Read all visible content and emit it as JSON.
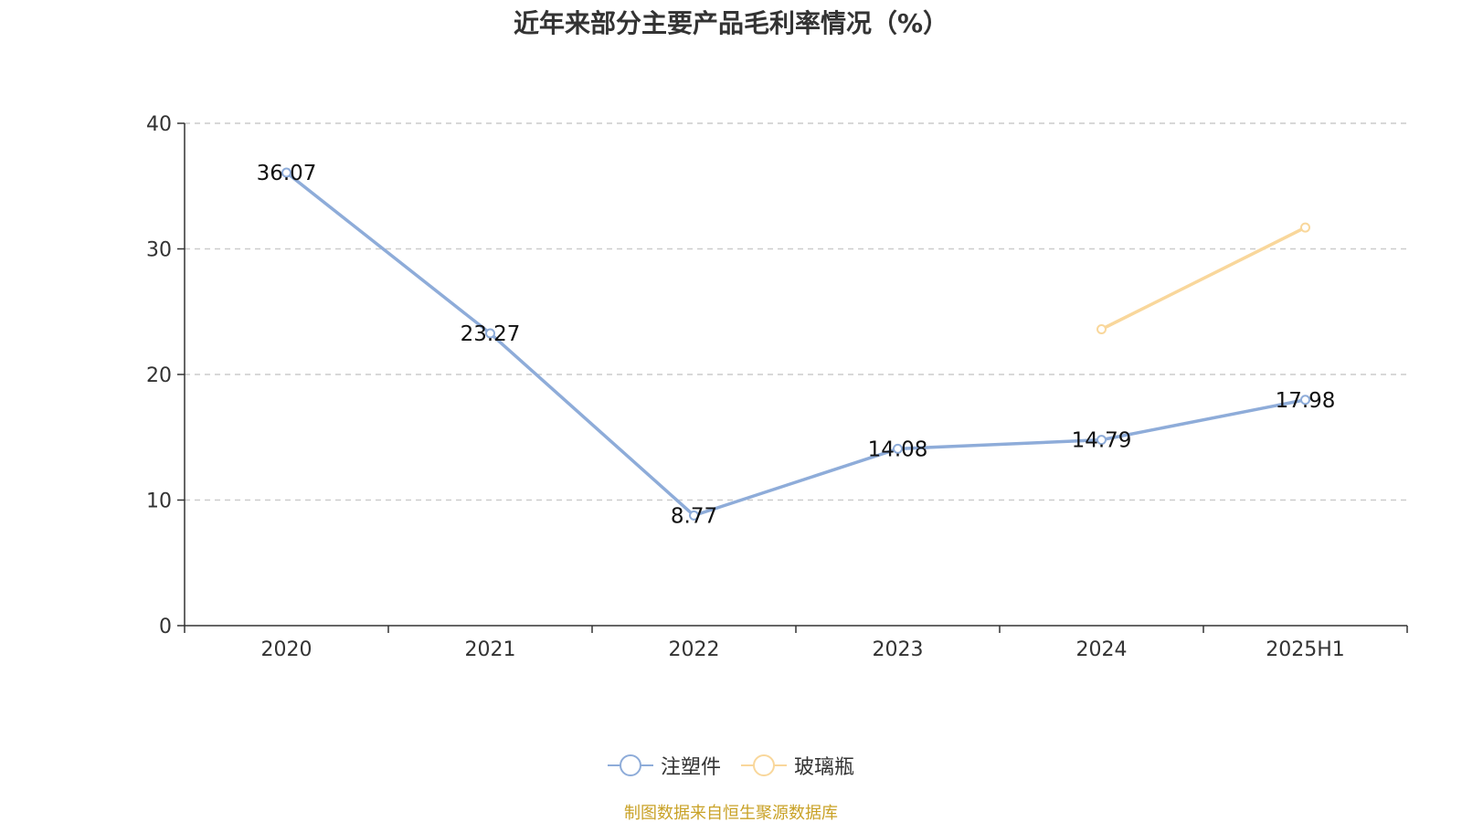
{
  "title": "近年来部分主要产品毛利率情况（%）",
  "source_note": "制图数据来自恒生聚源数据库",
  "colors": {
    "series_1": "#8eacd9",
    "series_2": "#f9d79b",
    "grid": "#cccccc",
    "axis": "#333333",
    "text": "#333333",
    "source": "#c9a227"
  },
  "legend": [
    {
      "name": "注塑件",
      "color": "#8eacd9"
    },
    {
      "name": "玻璃瓶",
      "color": "#f9d79b"
    }
  ],
  "chart_data": {
    "type": "line",
    "title": "近年来部分主要产品毛利率情况（%）",
    "xlabel": "",
    "ylabel": "",
    "categories": [
      "2020",
      "2021",
      "2022",
      "2023",
      "2024",
      "2025H1"
    ],
    "ylim": [
      0,
      40
    ],
    "yticks": [
      0,
      10,
      20,
      30,
      40
    ],
    "grid": true,
    "legend_position": "bottom",
    "series": [
      {
        "name": "注塑件",
        "values": [
          36.07,
          23.27,
          8.77,
          14.08,
          14.79,
          17.98
        ],
        "labels": [
          "36.07",
          "23.27",
          "8.77",
          "14.08",
          "14.79",
          "17.98"
        ],
        "show_labels": true
      },
      {
        "name": "玻璃瓶",
        "values": [
          null,
          null,
          null,
          null,
          23.6,
          31.7
        ],
        "show_labels": false
      }
    ]
  }
}
